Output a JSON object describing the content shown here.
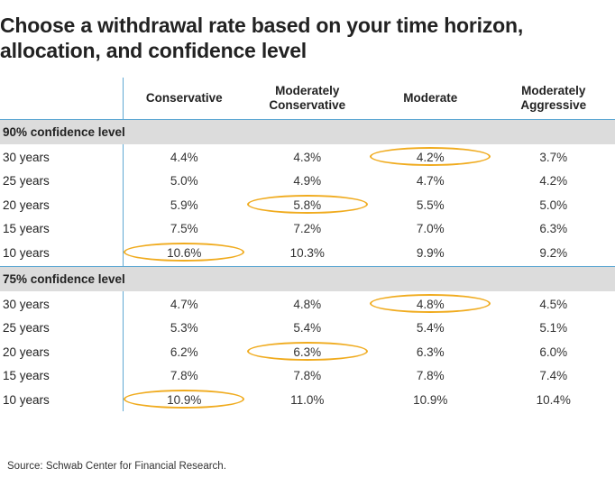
{
  "title": "Choose a withdrawal rate based on your time horizon, allocation, and confidence level",
  "source": "Source: Schwab Center for Financial Research.",
  "colors": {
    "highlight": "#f0ab1e",
    "band": "#dcdcdc",
    "rule": "#5fa8d3"
  },
  "chart_data": {
    "type": "table",
    "columns": [
      "Conservative",
      "Moderately Conservative",
      "Moderate",
      "Moderately Aggressive"
    ],
    "sections": [
      {
        "label": "90% confidence level",
        "rows": [
          {
            "label": "30 years",
            "values": [
              "4.4%",
              "4.3%",
              "4.2%",
              "3.7%"
            ],
            "highlight": 2
          },
          {
            "label": "25 years",
            "values": [
              "5.0%",
              "4.9%",
              "4.7%",
              "4.2%"
            ],
            "highlight": -1
          },
          {
            "label": "20 years",
            "values": [
              "5.9%",
              "5.8%",
              "5.5%",
              "5.0%"
            ],
            "highlight": 1
          },
          {
            "label": "15 years",
            "values": [
              "7.5%",
              "7.2%",
              "7.0%",
              "6.3%"
            ],
            "highlight": -1
          },
          {
            "label": "10 years",
            "values": [
              "10.6%",
              "10.3%",
              "9.9%",
              "9.2%"
            ],
            "highlight": 0
          }
        ]
      },
      {
        "label": "75% confidence level",
        "rows": [
          {
            "label": "30 years",
            "values": [
              "4.7%",
              "4.8%",
              "4.8%",
              "4.5%"
            ],
            "highlight": 2
          },
          {
            "label": "25 years",
            "values": [
              "5.3%",
              "5.4%",
              "5.4%",
              "5.1%"
            ],
            "highlight": -1
          },
          {
            "label": "20 years",
            "values": [
              "6.2%",
              "6.3%",
              "6.3%",
              "6.0%"
            ],
            "highlight": 1
          },
          {
            "label": "15 years",
            "values": [
              "7.8%",
              "7.8%",
              "7.8%",
              "7.4%"
            ],
            "highlight": -1
          },
          {
            "label": "10 years",
            "values": [
              "10.9%",
              "11.0%",
              "10.9%",
              "10.4%"
            ],
            "highlight": 0
          }
        ]
      }
    ]
  }
}
